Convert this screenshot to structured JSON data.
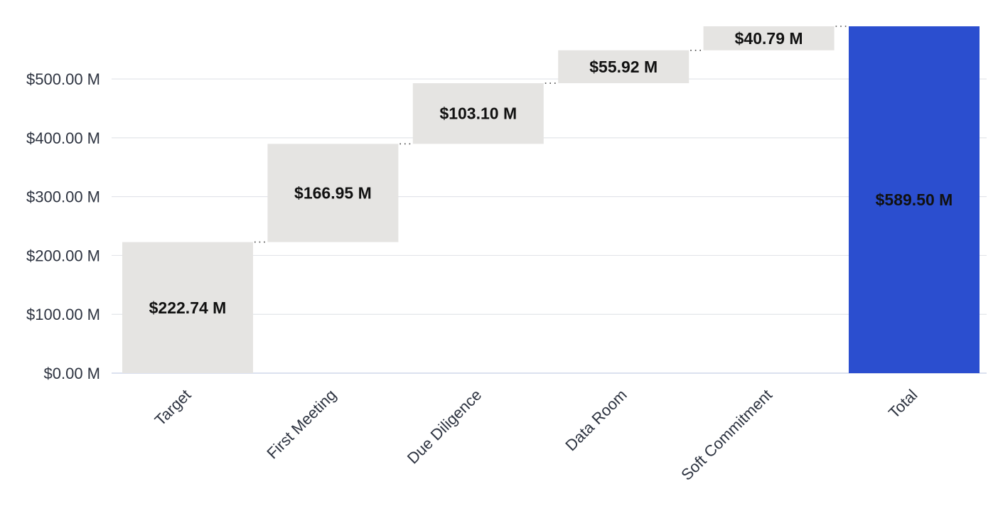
{
  "colors": {
    "step": "#e5e4e2",
    "total": "#2b4ecf",
    "grid": "#e3e5ea",
    "text": "#2d3340",
    "label": "#111111"
  },
  "chart_data": {
    "type": "bar",
    "subtype": "waterfall",
    "categories": [
      "Target",
      "First Meeting",
      "Due Diligence",
      "Data Room",
      "Soft Commitment",
      "Total"
    ],
    "values": [
      222.74,
      166.95,
      103.1,
      55.92,
      40.79,
      589.5
    ],
    "value_labels": [
      "$222.74 M",
      "$166.95 M",
      "$103.10 M",
      "$55.92 M",
      "$40.79 M",
      "$589.50 M"
    ],
    "is_total": [
      false,
      false,
      false,
      false,
      false,
      true
    ],
    "yticks": [
      0,
      100,
      200,
      300,
      400,
      500
    ],
    "ytick_labels": [
      "$0.00 M",
      "$100.00 M",
      "$200.00 M",
      "$300.00 M",
      "$400.00 M",
      "$500.00 M"
    ],
    "ylim": [
      0,
      589.5
    ],
    "unit": "$ M",
    "grid": true,
    "legend": "none",
    "title": "",
    "xlabel": "",
    "ylabel": ""
  }
}
